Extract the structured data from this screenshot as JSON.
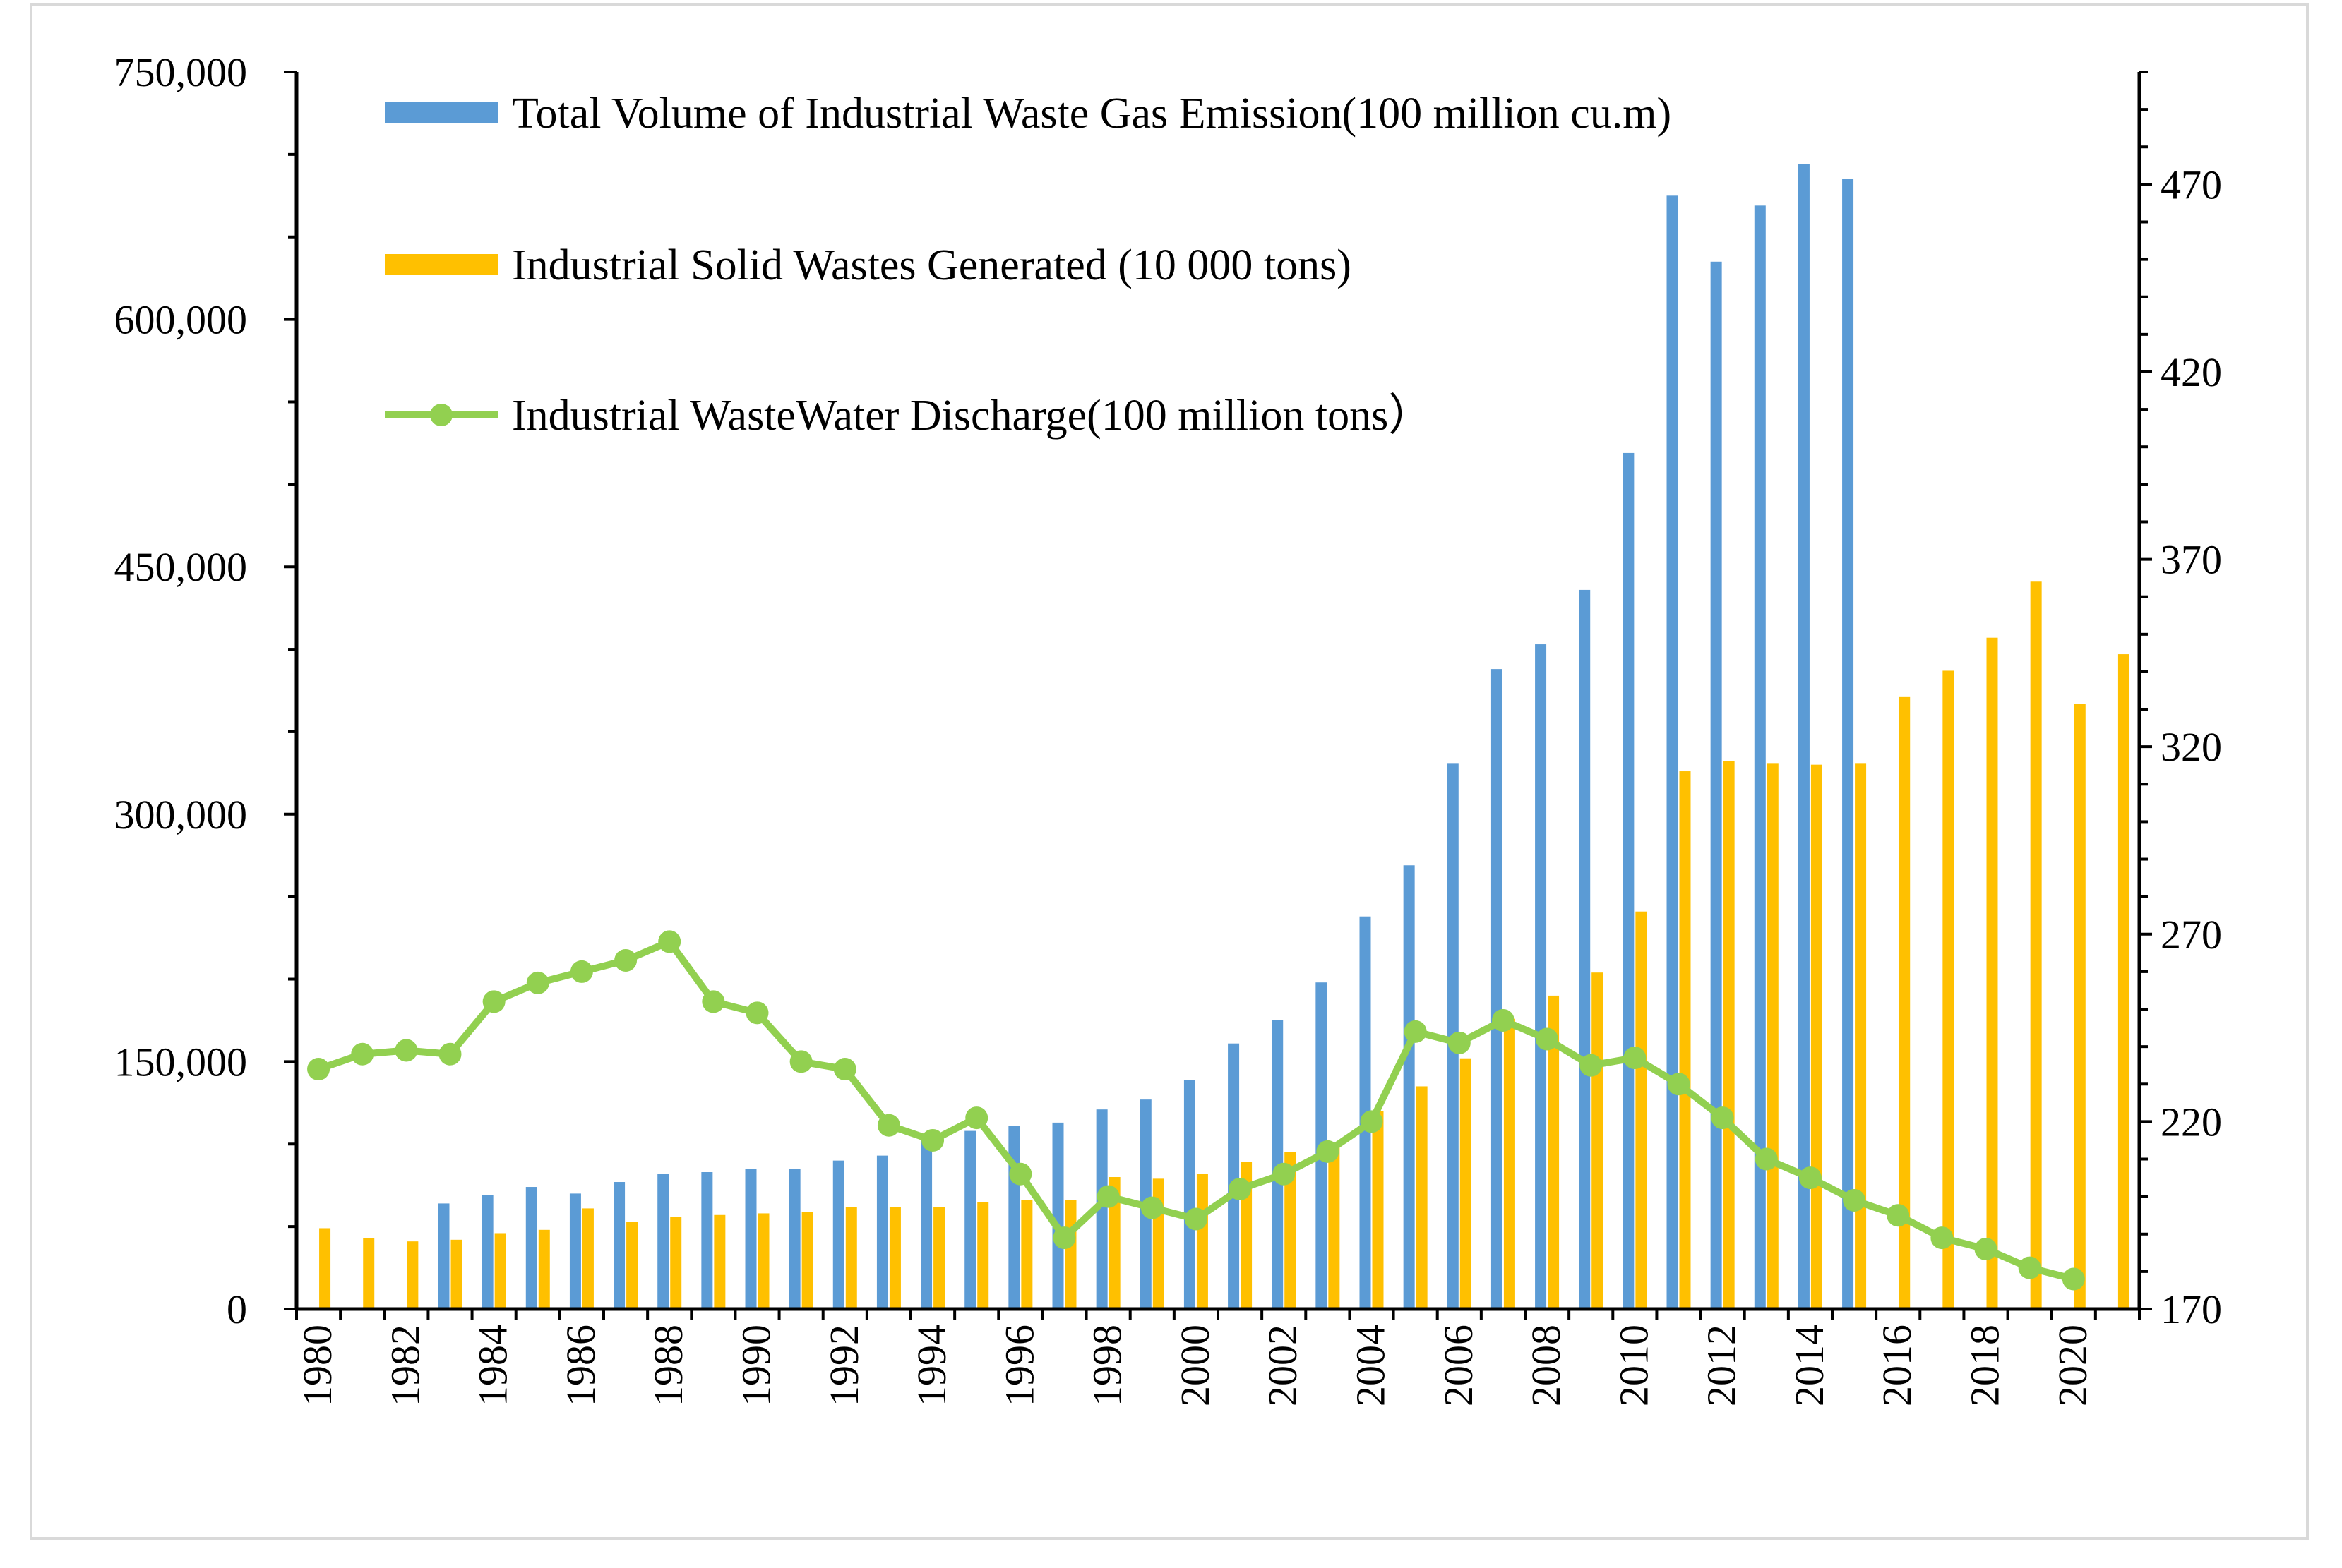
{
  "chart_data": {
    "type": "bar+line",
    "title": "",
    "x": [
      "1980",
      "1981",
      "1982",
      "1983",
      "1984",
      "1985",
      "1986",
      "1987",
      "1988",
      "1989",
      "1990",
      "1991",
      "1992",
      "1993",
      "1994",
      "1995",
      "1996",
      "1997",
      "1998",
      "1999",
      "2000",
      "2001",
      "2002",
      "2003",
      "2004",
      "2005",
      "2006",
      "2007",
      "2008",
      "2009",
      "2010",
      "2011",
      "2012",
      "2013",
      "2014",
      "2015",
      "2016",
      "2017",
      "2018",
      "2019",
      "2020",
      "2021"
    ],
    "x_tick_labels": [
      "1980",
      "1982",
      "1984",
      "1986",
      "1988",
      "1990",
      "1992",
      "1994",
      "1996",
      "1998",
      "2000",
      "2002",
      "2004",
      "2006",
      "2008",
      "2010",
      "2012",
      "2014",
      "2016",
      "2018",
      "2020"
    ],
    "y_left": {
      "min": 0,
      "max": 750000,
      "ticks": [
        "0",
        "150,000",
        "300,000",
        "450,000",
        "600,000",
        "750,000"
      ],
      "tick_values": [
        0,
        150000,
        300000,
        450000,
        600000,
        750000
      ]
    },
    "y_right": {
      "min": 170,
      "max": 500,
      "ticks": [
        "170",
        "220",
        "270",
        "320",
        "370",
        "420",
        "470"
      ],
      "tick_values": [
        170,
        220,
        270,
        320,
        370,
        420,
        470
      ]
    },
    "series": [
      {
        "name": "Total Volume of Industrial Waste Gas Emission(100 million cu.m)",
        "type": "bar",
        "axis": "left",
        "color": "#5b9bd5",
        "values": [
          null,
          null,
          null,
          64000,
          69000,
          74000,
          70000,
          77000,
          82000,
          83000,
          85000,
          85000,
          90000,
          93000,
          106000,
          108000,
          111000,
          113000,
          121000,
          127000,
          139000,
          161000,
          175000,
          198000,
          238000,
          269000,
          331000,
          388000,
          403000,
          436000,
          519000,
          675000,
          635000,
          669000,
          694000,
          685000,
          null,
          null,
          null,
          null,
          null,
          null
        ]
      },
      {
        "name": "Industrial Solid Wastes Generated (10 000 tons)",
        "type": "bar",
        "axis": "left",
        "color": "#ffc000",
        "values": [
          49000,
          43000,
          41000,
          42000,
          46000,
          48000,
          61000,
          53000,
          56000,
          57000,
          58000,
          59000,
          62000,
          62000,
          62000,
          65000,
          66000,
          66000,
          80000,
          79000,
          82000,
          89000,
          95000,
          100000,
          120000,
          135000,
          152000,
          176000,
          190000,
          204000,
          241000,
          326000,
          332000,
          331000,
          330000,
          331000,
          371000,
          387000,
          407000,
          441000,
          367000,
          397000
        ]
      },
      {
        "name": "Industrial WasteWater Discharge(100 million tons）",
        "type": "line",
        "axis": "right",
        "color": "#92d050",
        "values": [
          234,
          238,
          239,
          238,
          252,
          257,
          260,
          263,
          268,
          252,
          249,
          236,
          234,
          219,
          215,
          221,
          206,
          189,
          200,
          197,
          194,
          202,
          206,
          212,
          220,
          244,
          241,
          247,
          242,
          235,
          237,
          230,
          221,
          210,
          205,
          199,
          195,
          189,
          186,
          181,
          178,
          null
        ]
      }
    ]
  }
}
